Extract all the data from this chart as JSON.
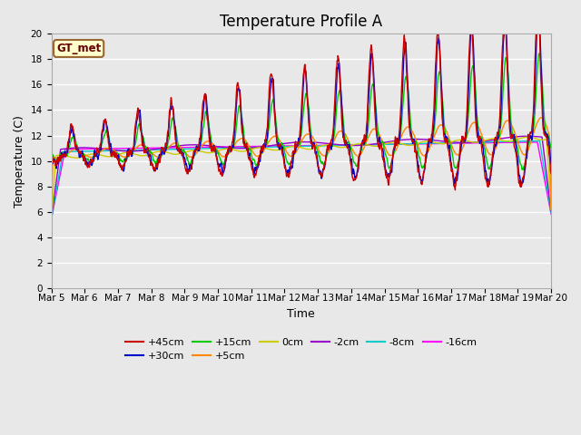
{
  "title": "Temperature Profile A",
  "xlabel": "Time",
  "ylabel": "Temperature (C)",
  "annotation": "GT_met",
  "ylim": [
    0,
    20
  ],
  "xlim_days": [
    5,
    20
  ],
  "x_tick_labels": [
    "Mar 5",
    "Mar 6",
    "Mar 7",
    "Mar 8",
    "Mar 9",
    "Mar 10",
    "Mar 11",
    "Mar 12",
    "Mar 13",
    "Mar 14",
    "Mar 15",
    "Mar 16",
    "Mar 17",
    "Mar 18",
    "Mar 19",
    "Mar 20"
  ],
  "series": {
    "+45cm": {
      "color": "#cc0000",
      "lw": 1.0
    },
    "+30cm": {
      "color": "#0000cc",
      "lw": 1.0
    },
    "+15cm": {
      "color": "#00cc00",
      "lw": 1.0
    },
    "+5cm": {
      "color": "#ff8800",
      "lw": 1.0
    },
    "0cm": {
      "color": "#cccc00",
      "lw": 1.0
    },
    "-2cm": {
      "color": "#9900cc",
      "lw": 1.0
    },
    "-8cm": {
      "color": "#00cccc",
      "lw": 1.0
    },
    "-16cm": {
      "color": "#ff00ff",
      "lw": 1.0
    }
  },
  "bg_color": "#e8e8e8",
  "grid_color": "#ffffff",
  "fig_bg_color": "#e8e8e8",
  "title_fontsize": 12,
  "axis_label_fontsize": 9,
  "tick_fontsize": 7.5
}
